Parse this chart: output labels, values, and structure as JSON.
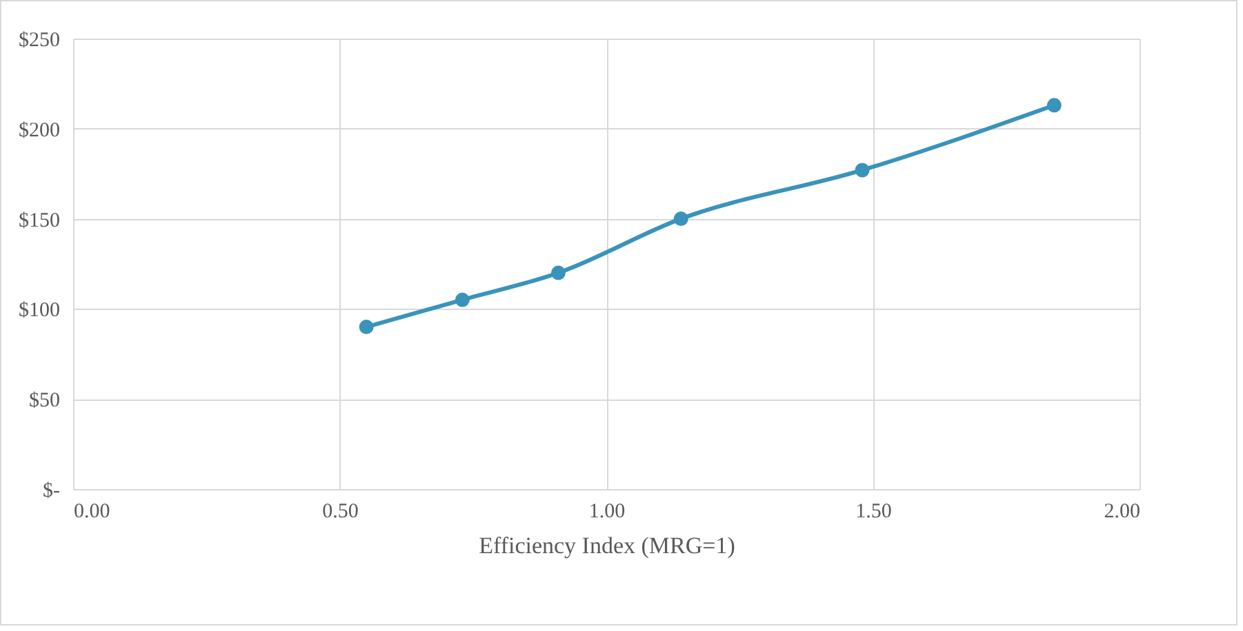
{
  "chart_data": {
    "type": "line",
    "xlabel": "Efficiency Index (MRG=1)",
    "x": [
      0.55,
      0.73,
      0.91,
      1.14,
      1.48,
      1.84
    ],
    "series": [
      {
        "color": "#3a93bb",
        "values": [
          90,
          105,
          120,
          150,
          177,
          213
        ]
      }
    ],
    "xlim": [
      0,
      2
    ],
    "xticks": [
      {
        "value": 0,
        "label": "0.00"
      },
      {
        "value": 0.5,
        "label": "0.50"
      },
      {
        "value": 1,
        "label": "1.00"
      },
      {
        "value": 1.5,
        "label": "1.50"
      },
      {
        "value": 2,
        "label": "2.00"
      }
    ],
    "ylim": [
      0,
      250
    ],
    "yticks": [
      {
        "value": 0,
        "label": "$-"
      },
      {
        "value": 50,
        "label": "$50"
      },
      {
        "value": 100,
        "label": "$100"
      },
      {
        "value": 150,
        "label": "$150"
      },
      {
        "value": 200,
        "label": "$200"
      },
      {
        "value": 250,
        "label": "$250"
      }
    ],
    "grid": true,
    "marker": "circle",
    "line_style": "solid"
  }
}
